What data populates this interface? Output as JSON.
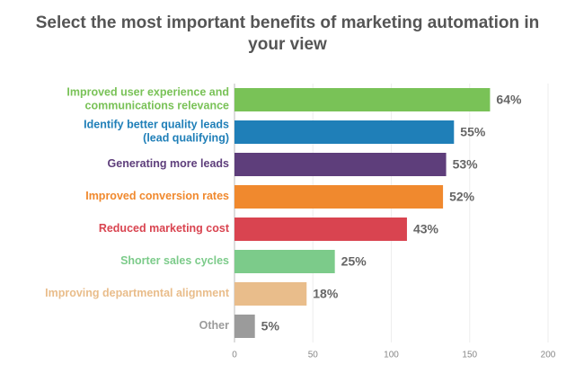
{
  "chart_data": {
    "type": "hbar",
    "title": "Select the most important benefits of marketing automation in\nyour view",
    "categories": [
      "Improved user experience and\ncommunications relevance",
      "Identify better quality leads\n(lead qualifying)",
      "Generating more leads",
      "Improved conversion rates",
      "Reduced marketing cost",
      "Shorter sales cycles",
      "Improving departmental alignment",
      "Other"
    ],
    "values": [
      163,
      140,
      135,
      133,
      110,
      64,
      46,
      13
    ],
    "value_labels": [
      "64%",
      "55%",
      "53%",
      "52%",
      "43%",
      "25%",
      "18%",
      "5%"
    ],
    "colors": [
      "#79c257",
      "#1f7fb8",
      "#5e3e7b",
      "#f0892e",
      "#d94450",
      "#7ccb8a",
      "#e9bd8b",
      "#9b9b9b"
    ],
    "xlim": [
      0,
      200
    ],
    "xticks": [
      0,
      50,
      100,
      150,
      200
    ],
    "grid": true
  }
}
